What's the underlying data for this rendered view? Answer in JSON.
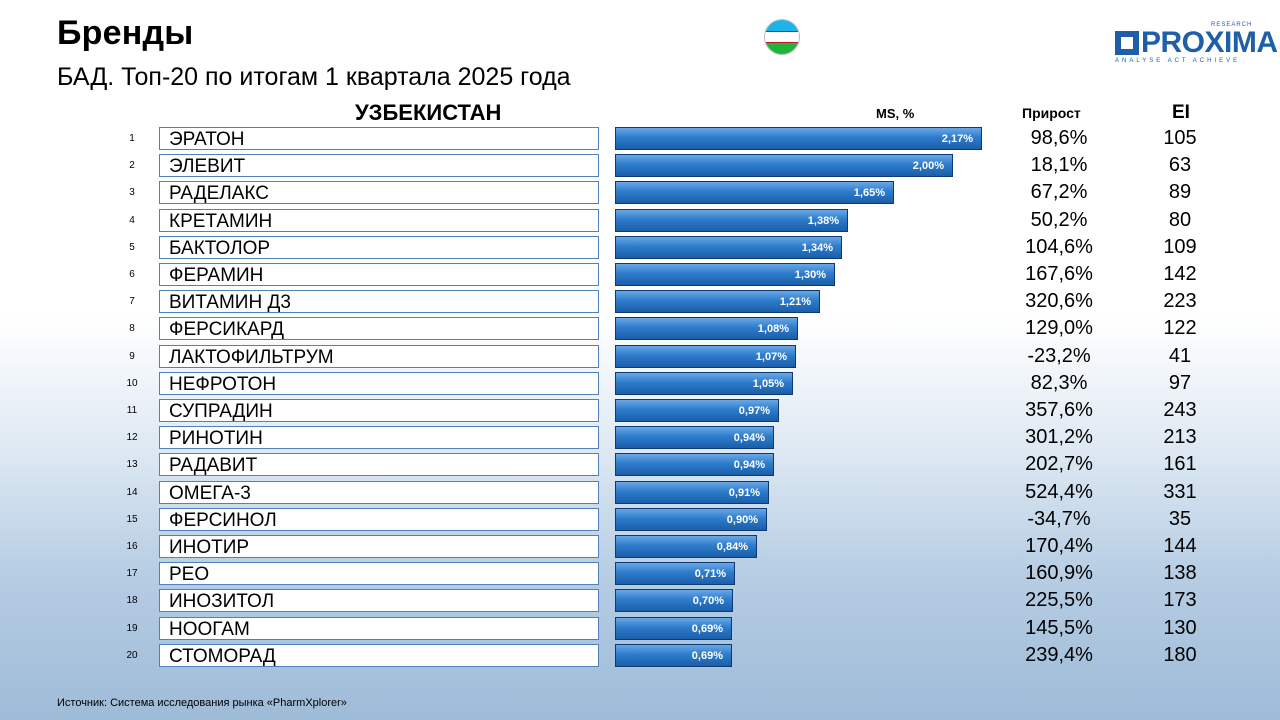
{
  "header": {
    "title": "Бренды",
    "subtitle": "БАД. Топ-20 по итогам 1 квартала 2025 года",
    "country": "УЗБЕКИСТАН",
    "logo_text": "PROXIMA",
    "logo_tagline": "ANALYSE  ACT  ACHIEVE",
    "logo_research": "RESEARCH"
  },
  "columns": {
    "ms": "MS, %",
    "growth": "Прирост",
    "ei": "EI"
  },
  "colors": {
    "bar": "#2e7ccc",
    "bar_border": "#0d3a73",
    "name_border": "#4f81bd",
    "logo": "#1f5fa8"
  },
  "chart_data": {
    "type": "bar",
    "orientation": "horizontal",
    "xlim": [
      0,
      2.17
    ],
    "categories": [
      "ЭРАТОН",
      "ЭЛЕВИТ",
      "РАДЕЛАКС",
      "КРЕТАМИН",
      "БАКТОЛОР",
      "ФЕРАМИН",
      "ВИТАМИН Д3",
      "ФЕРСИКАРД",
      "ЛАКТОФИЛЬТРУМ",
      "НЕФРОТОН",
      "СУПРАДИН",
      "РИНОТИН",
      "РАДАВИТ",
      "ОМЕГА-3",
      "ФЕРСИНОЛ",
      "ИНОТИР",
      "РЕО",
      "ИНОЗИТОЛ",
      "НООГАМ",
      "СТОМОРАД"
    ],
    "values": [
      2.17,
      2.0,
      1.65,
      1.38,
      1.34,
      1.3,
      1.21,
      1.08,
      1.07,
      1.05,
      0.97,
      0.94,
      0.94,
      0.91,
      0.9,
      0.84,
      0.71,
      0.7,
      0.69,
      0.69
    ],
    "value_labels": [
      "2,17%",
      "2,00%",
      "1,65%",
      "1,38%",
      "1,34%",
      "1,30%",
      "1,21%",
      "1,08%",
      "1,07%",
      "1,05%",
      "0,97%",
      "0,94%",
      "0,94%",
      "0,91%",
      "0,90%",
      "0,84%",
      "0,71%",
      "0,70%",
      "0,69%",
      "0,69%"
    ]
  },
  "rows": [
    {
      "rank": "1",
      "growth": "98,6%",
      "ei": "105"
    },
    {
      "rank": "2",
      "growth": "18,1%",
      "ei": "63"
    },
    {
      "rank": "3",
      "growth": "67,2%",
      "ei": "89"
    },
    {
      "rank": "4",
      "growth": "50,2%",
      "ei": "80"
    },
    {
      "rank": "5",
      "growth": "104,6%",
      "ei": "109"
    },
    {
      "rank": "6",
      "growth": "167,6%",
      "ei": "142"
    },
    {
      "rank": "7",
      "growth": "320,6%",
      "ei": "223"
    },
    {
      "rank": "8",
      "growth": "129,0%",
      "ei": "122"
    },
    {
      "rank": "9",
      "growth": "-23,2%",
      "ei": "41"
    },
    {
      "rank": "10",
      "growth": "82,3%",
      "ei": "97"
    },
    {
      "rank": "11",
      "growth": "357,6%",
      "ei": "243"
    },
    {
      "rank": "12",
      "growth": "301,2%",
      "ei": "213"
    },
    {
      "rank": "13",
      "growth": "202,7%",
      "ei": "161"
    },
    {
      "rank": "14",
      "growth": "524,4%",
      "ei": "331"
    },
    {
      "rank": "15",
      "growth": "-34,7%",
      "ei": "35"
    },
    {
      "rank": "16",
      "growth": "170,4%",
      "ei": "144"
    },
    {
      "rank": "17",
      "growth": "160,9%",
      "ei": "138"
    },
    {
      "rank": "18",
      "growth": "225,5%",
      "ei": "173"
    },
    {
      "rank": "19",
      "growth": "145,5%",
      "ei": "130"
    },
    {
      "rank": "20",
      "growth": "239,4%",
      "ei": "180"
    }
  ],
  "footer": {
    "source": "Источник: Система исследования рынка «PharmXplorer»"
  }
}
